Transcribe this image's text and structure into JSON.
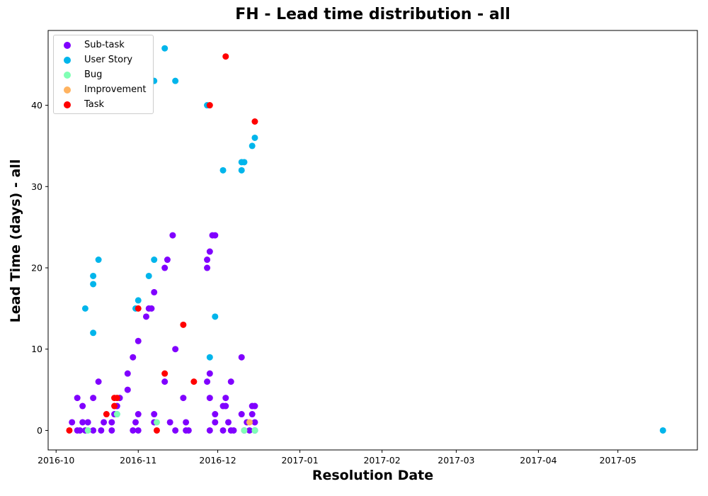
{
  "chart_data": {
    "type": "scatter",
    "title": "FH - Lead time distribution - all",
    "xlabel": "Resolution Date",
    "ylabel": "Lead Time (days) - all",
    "xlim": [
      "2016-09-28",
      "2017-05-31"
    ],
    "ylim": [
      -2.4,
      49.2
    ],
    "x_ticks": [
      {
        "date": "2016-10-01",
        "label": "2016-10"
      },
      {
        "date": "2016-11-01",
        "label": "2016-11"
      },
      {
        "date": "2016-12-01",
        "label": "2016-12"
      },
      {
        "date": "2017-01-01",
        "label": "2017-01"
      },
      {
        "date": "2017-02-01",
        "label": "2017-02"
      },
      {
        "date": "2017-03-01",
        "label": "2017-03"
      },
      {
        "date": "2017-04-01",
        "label": "2017-04"
      },
      {
        "date": "2017-05-01",
        "label": "2017-05"
      }
    ],
    "y_ticks": [
      0,
      10,
      20,
      30,
      40
    ],
    "grid": false,
    "legend_position": "top-left",
    "series": [
      {
        "name": "Sub-task",
        "color": "#8000ff",
        "points": [
          [
            "2016-10-07",
            1
          ],
          [
            "2016-10-09",
            4
          ],
          [
            "2016-10-09",
            0
          ],
          [
            "2016-10-10",
            0
          ],
          [
            "2016-10-11",
            1
          ],
          [
            "2016-10-11",
            3
          ],
          [
            "2016-10-12",
            0
          ],
          [
            "2016-10-13",
            1
          ],
          [
            "2016-10-15",
            0
          ],
          [
            "2016-10-15",
            4
          ],
          [
            "2016-10-17",
            6
          ],
          [
            "2016-10-18",
            0
          ],
          [
            "2016-10-19",
            1
          ],
          [
            "2016-10-22",
            0
          ],
          [
            "2016-10-22",
            1
          ],
          [
            "2016-10-23",
            2
          ],
          [
            "2016-10-24",
            3
          ],
          [
            "2016-10-25",
            4
          ],
          [
            "2016-10-28",
            7
          ],
          [
            "2016-10-28",
            5
          ],
          [
            "2016-10-30",
            9
          ],
          [
            "2016-10-30",
            0
          ],
          [
            "2016-10-31",
            1
          ],
          [
            "2016-11-01",
            2
          ],
          [
            "2016-11-01",
            11
          ],
          [
            "2016-11-01",
            0
          ],
          [
            "2016-11-04",
            14
          ],
          [
            "2016-11-05",
            15
          ],
          [
            "2016-11-06",
            15
          ],
          [
            "2016-11-07",
            17
          ],
          [
            "2016-11-07",
            2
          ],
          [
            "2016-11-07",
            1
          ],
          [
            "2016-11-11",
            6
          ],
          [
            "2016-11-11",
            20
          ],
          [
            "2016-11-12",
            21
          ],
          [
            "2016-11-13",
            1
          ],
          [
            "2016-11-14",
            24
          ],
          [
            "2016-11-15",
            10
          ],
          [
            "2016-11-15",
            0
          ],
          [
            "2016-11-18",
            4
          ],
          [
            "2016-11-19",
            1
          ],
          [
            "2016-11-19",
            0
          ],
          [
            "2016-11-20",
            0
          ],
          [
            "2016-11-27",
            20
          ],
          [
            "2016-11-27",
            21
          ],
          [
            "2016-11-27",
            6
          ],
          [
            "2016-11-28",
            22
          ],
          [
            "2016-11-28",
            7
          ],
          [
            "2016-11-28",
            4
          ],
          [
            "2016-11-28",
            0
          ],
          [
            "2016-11-29",
            24
          ],
          [
            "2016-11-30",
            24
          ],
          [
            "2016-11-30",
            1
          ],
          [
            "2016-11-30",
            2
          ],
          [
            "2016-12-03",
            3
          ],
          [
            "2016-12-03",
            0
          ],
          [
            "2016-12-04",
            4
          ],
          [
            "2016-12-04",
            3
          ],
          [
            "2016-12-05",
            1
          ],
          [
            "2016-12-06",
            6
          ],
          [
            "2016-12-06",
            0
          ],
          [
            "2016-12-07",
            0
          ],
          [
            "2016-12-10",
            9
          ],
          [
            "2016-12-10",
            2
          ],
          [
            "2016-12-11",
            0
          ],
          [
            "2016-12-12",
            1
          ],
          [
            "2016-12-13",
            0
          ],
          [
            "2016-12-14",
            3
          ],
          [
            "2016-12-14",
            2
          ],
          [
            "2016-12-15",
            3
          ],
          [
            "2016-12-15",
            1
          ],
          [
            "2016-12-15",
            0
          ]
        ]
      },
      {
        "name": "User Story",
        "color": "#00b5eb",
        "points": [
          [
            "2016-10-12",
            15
          ],
          [
            "2016-10-15",
            18
          ],
          [
            "2016-10-15",
            19
          ],
          [
            "2016-10-15",
            12
          ],
          [
            "2016-10-17",
            21
          ],
          [
            "2016-10-24",
            2
          ],
          [
            "2016-10-31",
            15
          ],
          [
            "2016-11-01",
            16
          ],
          [
            "2016-11-05",
            19
          ],
          [
            "2016-11-07",
            43
          ],
          [
            "2016-11-07",
            21
          ],
          [
            "2016-11-11",
            47
          ],
          [
            "2016-11-15",
            43
          ],
          [
            "2016-11-27",
            40
          ],
          [
            "2016-11-28",
            9
          ],
          [
            "2016-11-30",
            14
          ],
          [
            "2016-12-03",
            32
          ],
          [
            "2016-12-10",
            33
          ],
          [
            "2016-12-10",
            32
          ],
          [
            "2016-12-11",
            33
          ],
          [
            "2016-12-14",
            35
          ],
          [
            "2016-12-15",
            36
          ],
          [
            "2016-12-15",
            0
          ],
          [
            "2017-05-18",
            0
          ]
        ]
      },
      {
        "name": "Bug",
        "color": "#80ffb4",
        "points": [
          [
            "2016-10-13",
            0
          ],
          [
            "2016-10-24",
            2
          ],
          [
            "2016-11-08",
            1
          ],
          [
            "2016-12-11",
            0
          ],
          [
            "2016-12-15",
            0
          ]
        ]
      },
      {
        "name": "Improvement",
        "color": "#ffb360",
        "points": [
          [
            "2016-12-13",
            1
          ]
        ]
      },
      {
        "name": "Task",
        "color": "#ff0000",
        "points": [
          [
            "2016-10-06",
            0
          ],
          [
            "2016-10-20",
            2
          ],
          [
            "2016-10-23",
            3
          ],
          [
            "2016-10-23",
            4
          ],
          [
            "2016-10-24",
            4
          ],
          [
            "2016-11-01",
            15
          ],
          [
            "2016-11-08",
            0
          ],
          [
            "2016-11-11",
            7
          ],
          [
            "2016-11-18",
            13
          ],
          [
            "2016-11-22",
            6
          ],
          [
            "2016-11-28",
            40
          ],
          [
            "2016-12-04",
            46
          ],
          [
            "2016-12-15",
            38
          ]
        ]
      }
    ]
  }
}
